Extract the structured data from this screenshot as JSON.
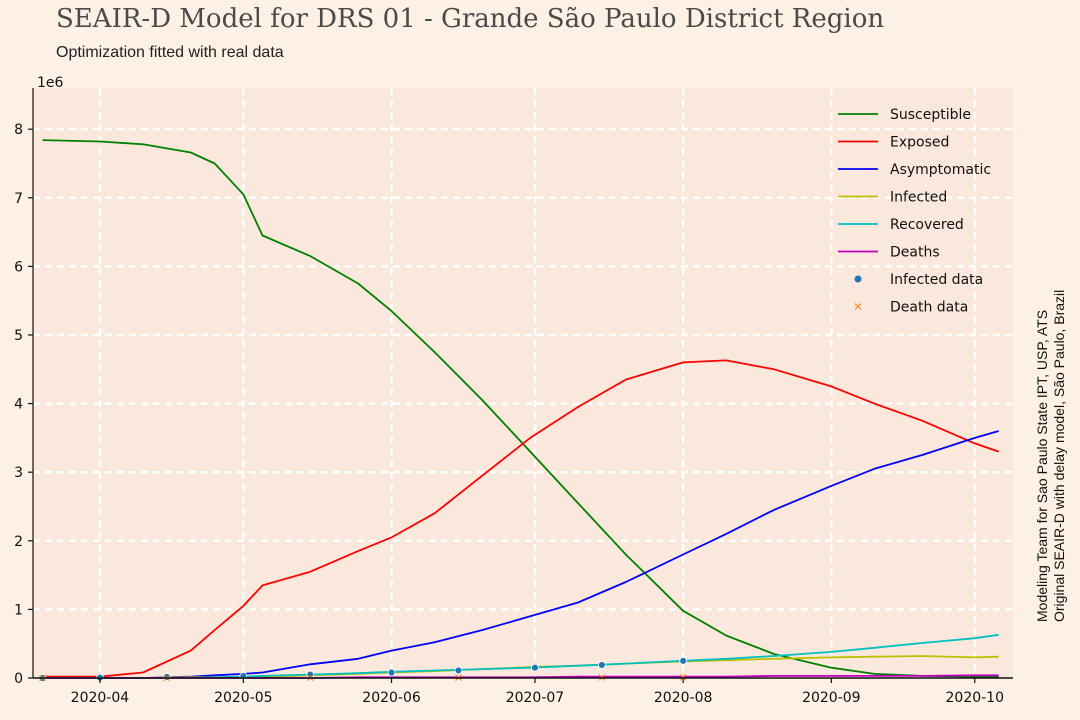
{
  "header": {
    "title": "SEAIR-D Model for DRS 01 - Grande São Paulo District Region",
    "subtitle": "Optimization fitted with real data"
  },
  "side_note": {
    "line1": "Modeling Team for Sao Paulo State IPT, USP, ATS",
    "line2": "Original SEAIR-D with delay model, São Paulo, Brazil"
  },
  "chart_data": {
    "type": "line",
    "title": "SEAIR-D Model for DRS 01 - Grande São Paulo District Region",
    "subtitle": "Optimization fitted with real data",
    "xlabel": "",
    "ylabel": "",
    "y_scale_label": "1e6",
    "xlim": [
      "2020-03-18",
      "2020-10-09"
    ],
    "ylim": [
      0,
      8.6
    ],
    "x_ticks": [
      "2020-04",
      "2020-05",
      "2020-06",
      "2020-07",
      "2020-08",
      "2020-09",
      "2020-10"
    ],
    "x_tick_dates": [
      "2020-04-01",
      "2020-05-01",
      "2020-06-01",
      "2020-07-01",
      "2020-08-01",
      "2020-09-01",
      "2020-10-01"
    ],
    "y_ticks": [
      0,
      1,
      2,
      3,
      4,
      5,
      6,
      7,
      8
    ],
    "grid": true,
    "legend_position": "top-right",
    "x": [
      "2020-03-20",
      "2020-04-01",
      "2020-04-10",
      "2020-04-20",
      "2020-04-25",
      "2020-05-01",
      "2020-05-05",
      "2020-05-15",
      "2020-05-25",
      "2020-06-01",
      "2020-06-10",
      "2020-06-20",
      "2020-06-30",
      "2020-07-10",
      "2020-07-20",
      "2020-08-01",
      "2020-08-10",
      "2020-08-20",
      "2020-09-01",
      "2020-09-10",
      "2020-09-20",
      "2020-10-01",
      "2020-10-06"
    ],
    "series": [
      {
        "name": "Susceptible",
        "color": "#008000",
        "values": [
          7.84,
          7.82,
          7.78,
          7.66,
          7.5,
          7.05,
          6.45,
          6.15,
          5.75,
          5.35,
          4.75,
          4.05,
          3.3,
          2.55,
          1.8,
          0.98,
          0.62,
          0.35,
          0.15,
          0.06,
          0.03,
          0.02,
          0.02
        ]
      },
      {
        "name": "Exposed",
        "color": "#ff0000",
        "values": [
          0.02,
          0.02,
          0.08,
          0.4,
          0.7,
          1.05,
          1.35,
          1.55,
          1.85,
          2.05,
          2.4,
          2.95,
          3.5,
          3.95,
          4.35,
          4.6,
          4.63,
          4.5,
          4.25,
          4.0,
          3.75,
          3.42,
          3.3
        ]
      },
      {
        "name": "Asymptomatic",
        "color": "#0000ff",
        "values": [
          0.0,
          0.0,
          0.0,
          0.02,
          0.04,
          0.06,
          0.08,
          0.2,
          0.28,
          0.4,
          0.52,
          0.7,
          0.9,
          1.1,
          1.4,
          1.8,
          2.1,
          2.45,
          2.8,
          3.05,
          3.25,
          3.5,
          3.6
        ]
      },
      {
        "name": "Infected",
        "color": "#bfbf00",
        "values": [
          0.0,
          0.0,
          0.0,
          0.01,
          0.01,
          0.02,
          0.02,
          0.04,
          0.06,
          0.08,
          0.1,
          0.13,
          0.16,
          0.18,
          0.21,
          0.24,
          0.26,
          0.28,
          0.3,
          0.31,
          0.32,
          0.3,
          0.31
        ]
      },
      {
        "name": "Recovered",
        "color": "#00bfbf",
        "values": [
          0.0,
          0.0,
          0.0,
          0.0,
          0.01,
          0.02,
          0.03,
          0.05,
          0.07,
          0.09,
          0.11,
          0.13,
          0.15,
          0.18,
          0.21,
          0.25,
          0.28,
          0.32,
          0.38,
          0.44,
          0.51,
          0.58,
          0.63
        ]
      },
      {
        "name": "Deaths",
        "color": "#bf00bf",
        "values": [
          0.0,
          0.0,
          0.0,
          0.0,
          0.0,
          0.0,
          0.0,
          0.0,
          0.01,
          0.01,
          0.01,
          0.01,
          0.01,
          0.02,
          0.02,
          0.02,
          0.02,
          0.03,
          0.03,
          0.03,
          0.03,
          0.04,
          0.04
        ]
      }
    ],
    "scatter_series": [
      {
        "name": "Infected data",
        "color": "#1f77b4",
        "marker": "circle",
        "x": [
          "2020-03-20",
          "2020-04-01",
          "2020-04-15",
          "2020-05-01",
          "2020-05-15",
          "2020-06-01",
          "2020-06-15",
          "2020-07-01",
          "2020-07-15",
          "2020-08-01"
        ],
        "values": [
          0.0,
          0.005,
          0.015,
          0.03,
          0.05,
          0.08,
          0.11,
          0.15,
          0.19,
          0.25
        ]
      },
      {
        "name": "Death data",
        "color": "#ff7f0e",
        "marker": "x",
        "x": [
          "2020-03-20",
          "2020-04-15",
          "2020-05-15",
          "2020-06-15",
          "2020-07-15",
          "2020-08-01"
        ],
        "values": [
          0.0,
          0.001,
          0.003,
          0.006,
          0.008,
          0.01
        ]
      }
    ]
  }
}
